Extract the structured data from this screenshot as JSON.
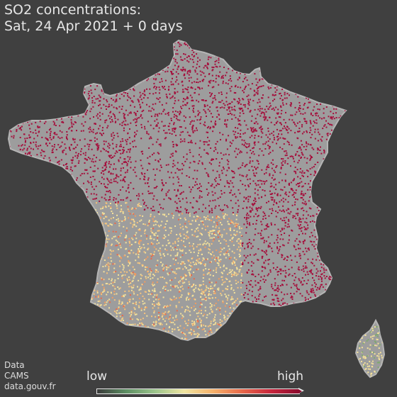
{
  "title": {
    "line1": "SO2 concentrations:",
    "line2": "Sat, 24 Apr 2021 + 0 days"
  },
  "credits": {
    "line1": "Data",
    "line2": "CAMS",
    "line3": "data.gouv.fr"
  },
  "legend": {
    "low_label": "low",
    "high_label": "high",
    "colors": [
      "#3a3a3a",
      "#5d8f63",
      "#9cc58c",
      "#f0e6a2",
      "#f6b26b",
      "#e8694a",
      "#c8263d",
      "#8a0b2d"
    ]
  },
  "map": {
    "land_color": "#a0a0a0",
    "high_color": "#a50f3c",
    "regions": [
      "mainland-france",
      "corsica"
    ]
  }
}
